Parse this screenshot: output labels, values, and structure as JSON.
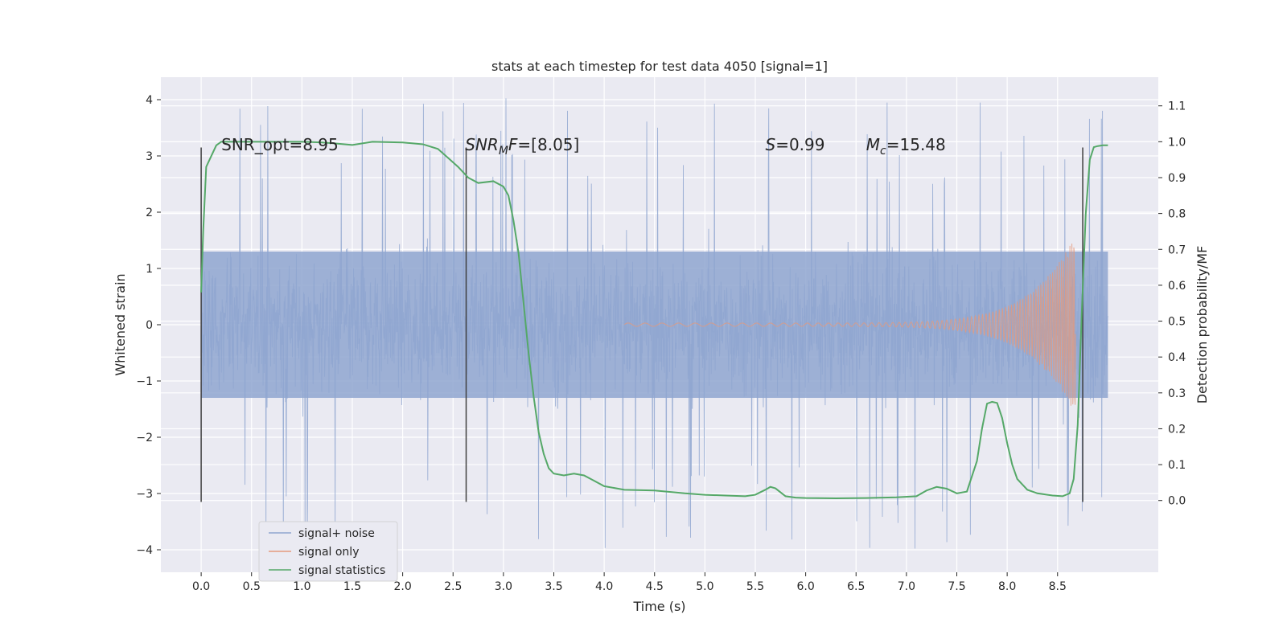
{
  "chart_data": {
    "type": "line",
    "title": "stats at each timestep for test data 4050 [signal=1]",
    "xlabel": "Time (s)",
    "ylabel": "Whitened strain",
    "ylabel_right": "Detection probability/MF",
    "xlim": [
      -0.4,
      9.5
    ],
    "ylim": [
      -4.4,
      4.4
    ],
    "ylim_right": [
      -0.2,
      1.18
    ],
    "x_ticks": [
      0.0,
      0.5,
      1.0,
      1.5,
      2.0,
      2.5,
      3.0,
      3.5,
      4.0,
      4.5,
      5.0,
      5.5,
      6.0,
      6.5,
      7.0,
      7.5,
      8.0,
      8.5
    ],
    "x_tick_labels": [
      "0.0",
      "0.5",
      "1.0",
      "1.5",
      "2.0",
      "2.5",
      "3.0",
      "3.5",
      "4.0",
      "4.5",
      "5.0",
      "5.5",
      "6.0",
      "6.5",
      "7.0",
      "7.5",
      "8.0",
      "8.5"
    ],
    "y_ticks": [
      4,
      3,
      2,
      1,
      0,
      -1,
      -2,
      -3,
      -4
    ],
    "y_tick_labels": [
      "4",
      "3",
      "2",
      "1",
      "0",
      "−1",
      "−2",
      "−3",
      "−4"
    ],
    "y2_ticks": [
      1.1,
      1.0,
      0.9,
      0.8,
      0.7,
      0.6,
      0.5,
      0.4,
      0.3,
      0.2,
      0.1,
      0.0
    ],
    "y2_tick_labels": [
      "1.1",
      "1.0",
      "0.9",
      "0.8",
      "0.7",
      "0.6",
      "0.5",
      "0.4",
      "0.3",
      "0.2",
      "0.1",
      "0.0"
    ],
    "annotations": [
      {
        "text": "SNR_opt=8.95",
        "x": 0.2,
        "y": 3.2
      },
      {
        "text": "SNR_MF=[8.05]",
        "x": 2.62,
        "y": 3.2
      },
      {
        "text": "S=0.99",
        "x": 5.6,
        "y": 3.2
      },
      {
        "text": "M_c=15.48",
        "x": 6.6,
        "y": 3.2
      }
    ],
    "vertical_lines": [
      {
        "x": 0.0,
        "ymin": -3.15,
        "ymax": 3.15
      },
      {
        "x": 2.63,
        "ymin": -3.15,
        "ymax": 3.15
      },
      {
        "x": 8.75,
        "ymin": -3.15,
        "ymax": 3.15
      }
    ],
    "noise_envelope": {
      "x_range": [
        0.0,
        9.0
      ],
      "core_amplitude": 1.3,
      "typical_peak": 2.5,
      "max_peak": 4.05,
      "min_trough": -4.0
    },
    "signal_chirp": {
      "x_start": 4.2,
      "x_merger": 8.68,
      "peak_amplitude": 1.6,
      "min_amplitude": -1.6
    },
    "series": [
      {
        "name": "signal+ noise",
        "color": "#8fa6d0",
        "axis": "left",
        "description": "noisy strain"
      },
      {
        "name": "signal only",
        "color": "#e59a7c",
        "axis": "left",
        "description": "chirp"
      },
      {
        "name": "signal statistics",
        "color": "#55a868",
        "axis": "right",
        "x": [
          0.0,
          0.02,
          0.05,
          0.1,
          0.15,
          0.2,
          0.3,
          0.5,
          0.8,
          1.0,
          1.2,
          1.3,
          1.5,
          1.7,
          2.0,
          2.2,
          2.35,
          2.45,
          2.55,
          2.65,
          2.75,
          2.9,
          3.0,
          3.05,
          3.1,
          3.15,
          3.2,
          3.25,
          3.3,
          3.35,
          3.4,
          3.45,
          3.5,
          3.6,
          3.7,
          3.8,
          3.9,
          4.0,
          4.2,
          4.5,
          4.8,
          5.0,
          5.2,
          5.4,
          5.5,
          5.6,
          5.65,
          5.7,
          5.8,
          5.9,
          6.0,
          6.3,
          6.6,
          6.9,
          7.1,
          7.2,
          7.3,
          7.4,
          7.5,
          7.6,
          7.7,
          7.75,
          7.8,
          7.85,
          7.9,
          7.95,
          8.0,
          8.05,
          8.1,
          8.2,
          8.3,
          8.45,
          8.55,
          8.62,
          8.66,
          8.7,
          8.74,
          8.78,
          8.82,
          8.86,
          8.9,
          8.95,
          9.0
        ],
        "y": [
          0.58,
          0.75,
          0.93,
          0.96,
          0.99,
          1.0,
          1.0,
          1.0,
          1.0,
          1.0,
          0.998,
          0.996,
          0.991,
          1.0,
          0.998,
          0.993,
          0.98,
          0.955,
          0.93,
          0.9,
          0.885,
          0.89,
          0.875,
          0.85,
          0.78,
          0.69,
          0.55,
          0.41,
          0.29,
          0.19,
          0.13,
          0.09,
          0.075,
          0.07,
          0.075,
          0.07,
          0.055,
          0.04,
          0.03,
          0.028,
          0.02,
          0.016,
          0.014,
          0.012,
          0.016,
          0.03,
          0.038,
          0.034,
          0.012,
          0.008,
          0.007,
          0.006,
          0.007,
          0.009,
          0.012,
          0.028,
          0.038,
          0.033,
          0.02,
          0.025,
          0.11,
          0.2,
          0.27,
          0.275,
          0.272,
          0.23,
          0.16,
          0.1,
          0.06,
          0.03,
          0.02,
          0.014,
          0.012,
          0.02,
          0.06,
          0.21,
          0.52,
          0.8,
          0.95,
          0.985,
          0.988,
          0.99,
          0.99
        ]
      }
    ],
    "legend": {
      "placement": "lower-left",
      "entries": [
        "signal+ noise",
        "signal only",
        "signal statistics"
      ]
    },
    "grid": true
  },
  "colors": {
    "plot_background": "#eaeaf2",
    "grid": "#ffffff",
    "noise": "#8fa6d0",
    "signal": "#e59a7c",
    "stats": "#55a868",
    "vline": "#404040"
  }
}
